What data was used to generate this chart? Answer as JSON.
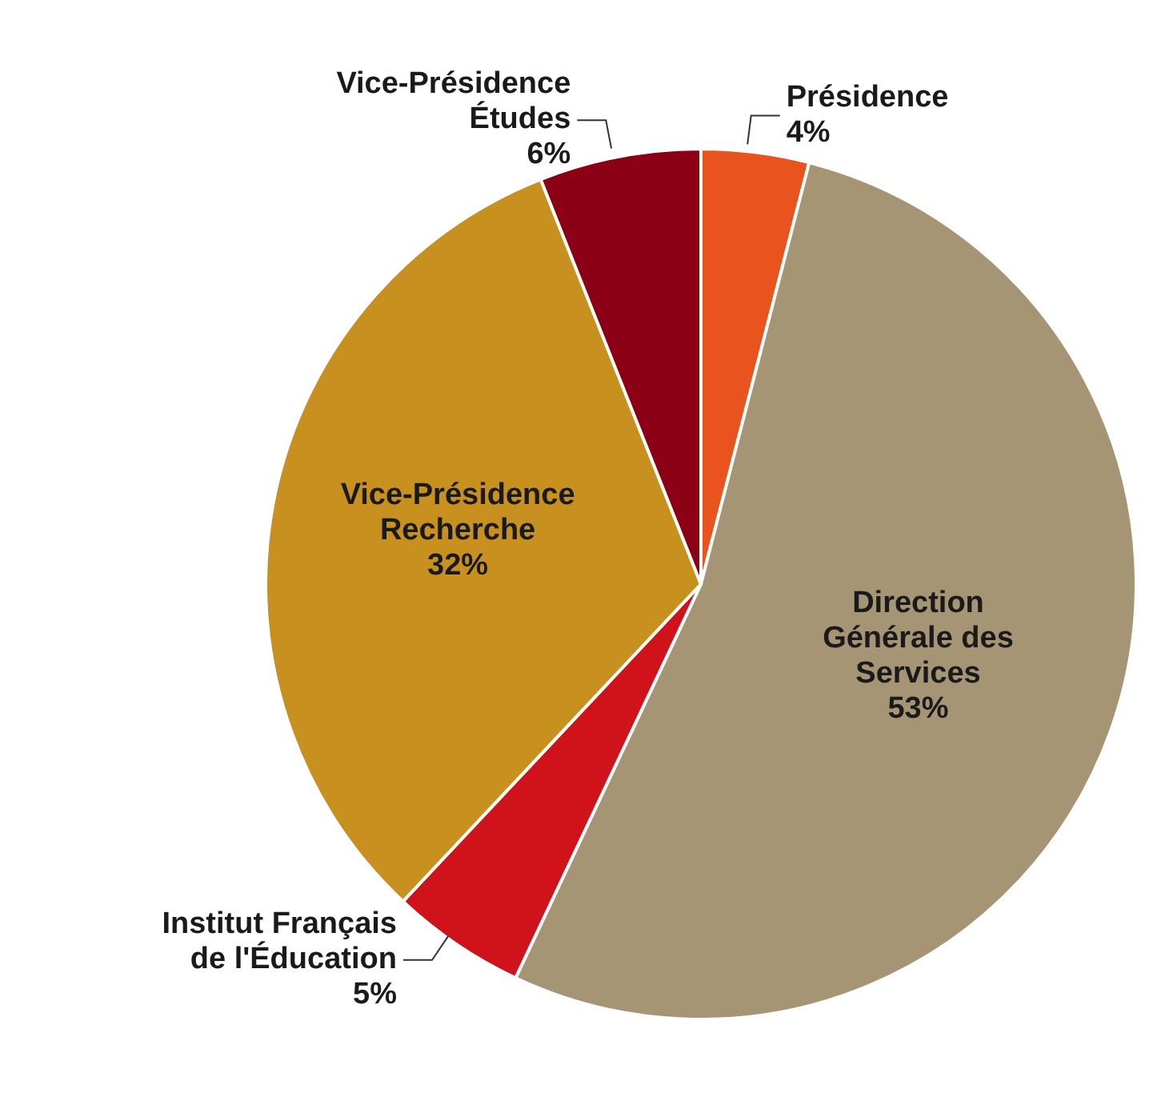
{
  "chart_data": {
    "type": "pie",
    "categories": [
      "Présidence",
      "Direction Générale des Services",
      "Institut Français de l'Éducation",
      "Vice-Présidence Recherche",
      "Vice-Présidence Études"
    ],
    "values": [
      4,
      53,
      5,
      32,
      6
    ],
    "value_labels": [
      "4%",
      "53%",
      "5%",
      "32%",
      "6%"
    ],
    "colors": [
      "#e8531e",
      "#a69575",
      "#d0121b",
      "#c8901e",
      "#8b0015"
    ],
    "legend": false
  }
}
